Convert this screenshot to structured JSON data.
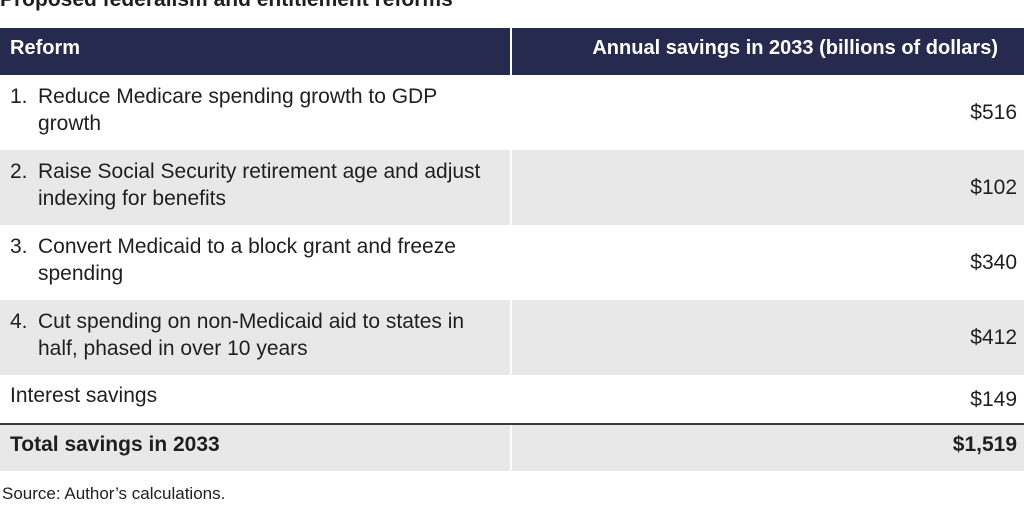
{
  "title": "Proposed federalism and entitlement reforms",
  "source": "Source: Author’s calculations.",
  "chart_data": {
    "type": "table",
    "columns": [
      "Reform",
      "Annual savings in 2033 (billions of dollars)"
    ],
    "rows": [
      {
        "number": "1.",
        "label": "Reduce Medicare spending growth to GDP growth",
        "value": "$516"
      },
      {
        "number": "2.",
        "label": "Raise Social Security retirement age and adjust indexing for benefits",
        "value": "$102"
      },
      {
        "number": "3.",
        "label": "Convert Medicaid to a block grant and freeze spending",
        "value": "$340"
      },
      {
        "number": "4.",
        "label": "Cut spending on non-Medicaid aid to states in half, phased in over 10 years",
        "value": "$412"
      },
      {
        "number": "",
        "label": "Interest savings",
        "value": "$149"
      }
    ],
    "total": {
      "label": "Total savings in 2033",
      "value": "$1,519"
    }
  },
  "colors": {
    "header_bg": "#272a4f",
    "shaded_row": "#e8e8e8"
  }
}
